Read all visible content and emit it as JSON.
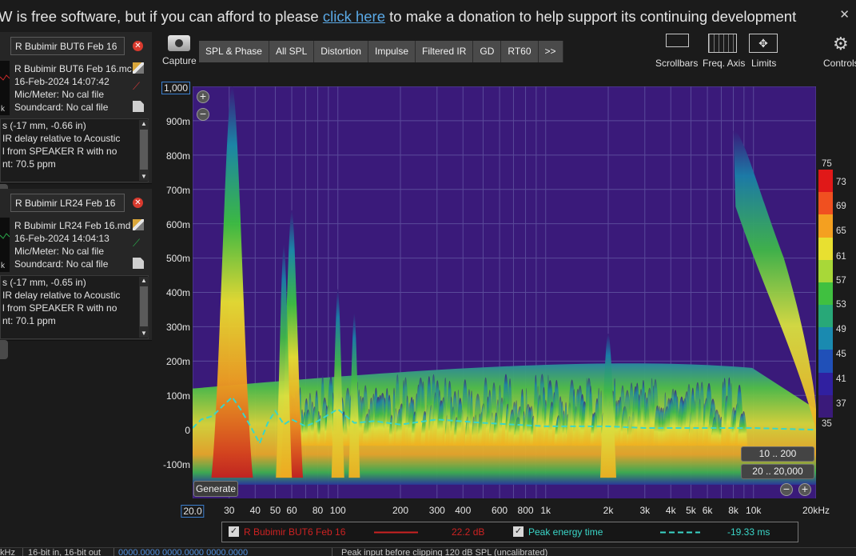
{
  "banner": {
    "text_before": "W is free software, but if you can afford to please ",
    "link": "click here",
    "text_after": " to make a donation to help support its continuing development"
  },
  "measurements": [
    {
      "name": "R Bubimir BUT6 Feb 16",
      "file": "R Bubimir BUT6 Feb 16.mc",
      "date": "16-Feb-2024 14:07:42",
      "mic": "Mic/Meter: No cal file",
      "soundcard": "Soundcard: No cal file",
      "thumb_label": "k",
      "notes": [
        "s (-17 mm, -0.66 in)",
        "IR delay relative to Acoustic",
        "l from SPEAKER R with no",
        "",
        "nt: 70.5 ppm"
      ]
    },
    {
      "name": "R Bubimir LR24 Feb 16",
      "file": "R Bubimir LR24 Feb 16.md",
      "date": "16-Feb-2024 14:04:13",
      "mic": "Mic/Meter: No cal file",
      "soundcard": "Soundcard: No cal file",
      "thumb_label": "k",
      "notes": [
        "s (-17 mm, -0.65 in)",
        "IR delay relative to Acoustic",
        "l from SPEAKER R with no",
        "",
        "nt: 70.1 ppm"
      ]
    }
  ],
  "toolbar": {
    "capture": "Capture",
    "tabs": [
      "SPL & Phase",
      "All SPL",
      "Distortion",
      "Impulse",
      "Filtered IR",
      "GD",
      "RT60",
      ">>"
    ],
    "scrollbars": "Scrollbars",
    "freq_axis": "Freq. Axis",
    "limits": "Limits",
    "controls": "Controls"
  },
  "graph": {
    "y_ticks": [
      "1,000",
      "900m",
      "800m",
      "700m",
      "600m",
      "500m",
      "400m",
      "300m",
      "200m",
      "100m",
      "0",
      "-100m"
    ],
    "x_ticks": [
      "20.0",
      "30",
      "40",
      "50",
      "60",
      "80",
      "100",
      "200",
      "300",
      "400",
      "600",
      "800",
      "1k",
      "2k",
      "3k",
      "4k",
      "5k",
      "6k",
      "8k",
      "10k",
      "20kHz"
    ],
    "generate": "Generate",
    "range_btn_1": "10 .. 200",
    "range_btn_2": "20 .. 20,000",
    "zoom_in": "+",
    "zoom_out": "−",
    "color_scale": [
      "75",
      "73",
      "69",
      "65",
      "61",
      "57",
      "53",
      "49",
      "45",
      "41",
      "37",
      "35"
    ]
  },
  "chart_data": {
    "type": "heatmap",
    "x_label": "",
    "y_label": "",
    "x_range_hz": [
      20,
      20000
    ],
    "x_scale": "log",
    "y_range": [
      -200,
      1000
    ],
    "color_range_db": [
      35,
      75
    ],
    "peak_energy_time_series": {
      "name": "Peak energy time",
      "freq_hz": [
        20,
        22,
        25,
        28,
        31,
        34,
        38,
        42,
        46,
        50,
        55,
        60,
        70,
        80,
        100,
        120,
        150,
        200,
        300,
        500,
        1000,
        2000,
        3000,
        5000,
        10000,
        20000
      ],
      "time_ms": [
        5,
        30,
        40,
        70,
        95,
        60,
        10,
        -40,
        20,
        55,
        15,
        30,
        10,
        25,
        60,
        20,
        25,
        15,
        30,
        20,
        10,
        10,
        5,
        5,
        5,
        0
      ]
    }
  },
  "legend": {
    "item1_name": "R Bubimir BUT6 Feb 16",
    "item1_value": "22.2 dB",
    "item2_name": "Peak energy time",
    "item2_value": "-19.33 ms"
  },
  "status": {
    "s1": "kHz",
    "s2": "16-bit in, 16-bit out",
    "s3": "0000.0000 0000.0000 0000.0000",
    "s4": "Peak input before clipping 120 dB SPL (uncalibrated)"
  },
  "colors": {
    "background": "#1b1b1b",
    "plot_background": "#3a1a7a",
    "link": "#5aa9e6",
    "curve": "#3ad6c8",
    "legend_red": "#cc2222"
  }
}
